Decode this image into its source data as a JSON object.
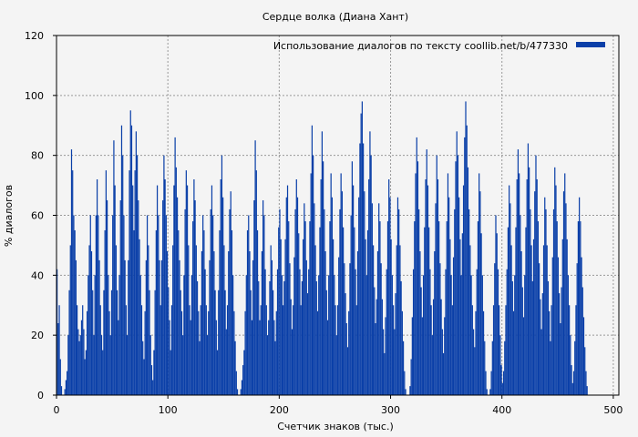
{
  "chart_data": {
    "type": "bar",
    "title": "Сердце волка (Диана Хант)",
    "xlabel": "Счетчик знаков (тыс.)",
    "ylabel": "% диалогов",
    "xlim": [
      0,
      505
    ],
    "ylim": [
      0,
      120
    ],
    "x_ticks": [
      0,
      100,
      200,
      300,
      400,
      500
    ],
    "y_ticks": [
      0,
      20,
      40,
      60,
      80,
      100,
      120
    ],
    "grid": true,
    "legend_position": "top-right",
    "series": [
      {
        "name": "Использование диалогов по тексту  coollib.net/b/477330",
        "color": "#0a3fa8",
        "x_step": 1,
        "values": [
          42,
          24,
          30,
          12,
          3,
          0,
          0,
          2,
          5,
          8,
          20,
          35,
          50,
          82,
          75,
          60,
          55,
          45,
          30,
          22,
          18,
          20,
          25,
          30,
          22,
          12,
          15,
          28,
          40,
          50,
          60,
          48,
          35,
          20,
          40,
          60,
          72,
          60,
          45,
          30,
          20,
          15,
          35,
          55,
          75,
          65,
          40,
          28,
          20,
          35,
          60,
          85,
          70,
          50,
          35,
          25,
          40,
          65,
          90,
          80,
          60,
          45,
          30,
          20,
          45,
          75,
          95,
          90,
          70,
          55,
          75,
          88,
          80,
          65,
          52,
          40,
          30,
          18,
          12,
          28,
          45,
          60,
          50,
          35,
          20,
          10,
          5,
          15,
          35,
          55,
          70,
          60,
          45,
          30,
          45,
          65,
          80,
          72,
          60,
          48,
          36,
          25,
          15,
          30,
          50,
          70,
          86,
          76,
          66,
          55,
          45,
          35,
          28,
          20,
          40,
          62,
          75,
          70,
          50,
          30,
          25,
          40,
          58,
          72,
          65,
          50,
          38,
          28,
          18,
          30,
          48,
          60,
          55,
          42,
          30,
          20,
          28,
          45,
          62,
          70,
          60,
          48,
          35,
          25,
          15,
          35,
          55,
          72,
          80,
          66,
          50,
          35,
          22,
          30,
          48,
          62,
          68,
          55,
          40,
          28,
          18,
          8,
          2,
          0,
          0,
          2,
          5,
          10,
          15,
          28,
          40,
          55,
          60,
          48,
          35,
          25,
          45,
          65,
          85,
          75,
          55,
          38,
          25,
          30,
          48,
          65,
          60,
          42,
          30,
          20,
          25,
          38,
          50,
          45,
          35,
          25,
          18,
          28,
          42,
          56,
          62,
          52,
          40,
          30,
          38,
          52,
          66,
          70,
          58,
          44,
          32,
          22,
          30,
          46,
          62,
          72,
          66,
          54,
          42,
          30,
          38,
          52,
          64,
          58,
          45,
          34,
          42,
          58,
          74,
          90,
          80,
          64,
          50,
          38,
          28,
          40,
          56,
          72,
          88,
          78,
          62,
          48,
          35,
          25,
          40,
          58,
          74,
          66,
          52,
          40,
          30,
          20,
          30,
          46,
          62,
          74,
          68,
          56,
          44,
          34,
          24,
          16,
          28,
          44,
          60,
          78,
          70,
          56,
          42,
          30,
          48,
          66,
          84,
          94,
          98,
          84,
          68,
          52,
          40,
          55,
          72,
          88,
          80,
          64,
          50,
          36,
          24,
          32,
          48,
          64,
          58,
          44,
          32,
          22,
          14,
          26,
          42,
          58,
          72,
          66,
          52,
          40,
          30,
          22,
          34,
          50,
          66,
          62,
          50,
          38,
          28,
          18,
          8,
          2,
          0,
          0,
          0,
          3,
          12,
          26,
          42,
          58,
          74,
          86,
          78,
          62,
          48,
          36,
          26,
          40,
          56,
          72,
          82,
          70,
          56,
          42,
          30,
          20,
          32,
          48,
          64,
          80,
          72,
          58,
          44,
          32,
          22,
          14,
          26,
          42,
          58,
          74,
          66,
          52,
          40,
          30,
          46,
          62,
          78,
          88,
          80,
          66,
          52,
          40,
          54,
          70,
          86,
          98,
          90,
          76,
          62,
          50,
          40,
          30,
          22,
          16,
          28,
          42,
          58,
          74,
          68,
          54,
          40,
          28,
          18,
          8,
          2,
          0,
          0,
          2,
          8,
          18,
          30,
          44,
          60,
          54,
          42,
          30,
          20,
          10,
          4,
          8,
          18,
          30,
          42,
          56,
          70,
          64,
          50,
          38,
          28,
          40,
          56,
          72,
          82,
          74,
          60,
          48,
          36,
          26,
          40,
          56,
          72,
          84,
          76,
          62,
          50,
          38,
          52,
          68,
          80,
          72,
          58,
          44,
          32,
          22,
          34,
          50,
          66,
          62,
          50,
          38,
          28,
          18,
          30,
          46,
          62,
          76,
          70,
          58,
          46,
          34,
          24,
          36,
          52,
          68,
          74,
          64,
          52,
          40,
          30,
          20,
          10,
          4,
          8,
          18,
          30,
          44,
          58,
          66,
          58,
          46,
          36,
          26,
          16,
          8,
          3
        ]
      }
    ]
  }
}
